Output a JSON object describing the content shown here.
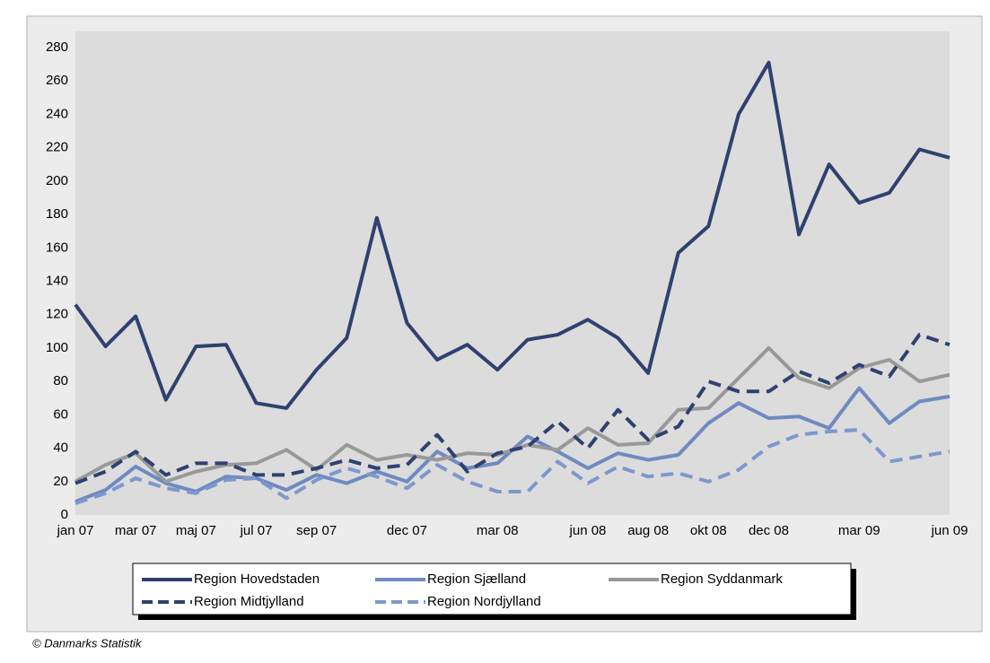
{
  "chart_data": {
    "type": "line",
    "categories": [
      "jan 07",
      null,
      "mar 07",
      null,
      "maj 07",
      null,
      "jul 07",
      null,
      "sep 07",
      null,
      null,
      "dec 07",
      null,
      null,
      "mar 08",
      null,
      null,
      "jun 08",
      null,
      "aug 08",
      null,
      "okt 08",
      null,
      "dec 08",
      null,
      null,
      "mar 09",
      null,
      null,
      "jun 09"
    ],
    "series": [
      {
        "name": "Region Hovedstaden",
        "color": "#2f4170",
        "dashed": false,
        "values": [
          126,
          101,
          119,
          69,
          101,
          102,
          67,
          64,
          87,
          106,
          178,
          115,
          93,
          102,
          87,
          105,
          108,
          117,
          106,
          85,
          157,
          173,
          240,
          271,
          168,
          210,
          187,
          193,
          219,
          214
        ]
      },
      {
        "name": "Region Sjælland",
        "color": "#6f8ac0",
        "dashed": false,
        "values": [
          8,
          15,
          29,
          19,
          14,
          23,
          22,
          15,
          24,
          19,
          26,
          20,
          38,
          28,
          31,
          47,
          38,
          28,
          37,
          33,
          36,
          55,
          67,
          58,
          59,
          52,
          76,
          55,
          68,
          71
        ]
      },
      {
        "name": "Region Syddanmark",
        "color": "#999999",
        "dashed": false,
        "values": [
          20,
          30,
          37,
          20,
          26,
          30,
          31,
          39,
          27,
          42,
          33,
          36,
          33,
          37,
          36,
          42,
          39,
          52,
          42,
          43,
          63,
          64,
          82,
          100,
          82,
          76,
          88,
          93,
          80,
          84
        ]
      },
      {
        "name": "Region Midtjylland",
        "color": "#2f4170",
        "dashed": true,
        "values": [
          19,
          26,
          38,
          24,
          31,
          31,
          24,
          24,
          28,
          33,
          28,
          30,
          48,
          26,
          37,
          41,
          56,
          40,
          63,
          45,
          53,
          80,
          74,
          74,
          86,
          79,
          90,
          83,
          108,
          102
        ]
      },
      {
        "name": "Region Nordjylland",
        "color": "#7d98cc",
        "dashed": true,
        "values": [
          7,
          13,
          22,
          16,
          13,
          21,
          22,
          10,
          21,
          28,
          23,
          16,
          30,
          20,
          14,
          14,
          32,
          19,
          29,
          23,
          25,
          20,
          27,
          41,
          48,
          50,
          51,
          32,
          35,
          38
        ]
      }
    ],
    "ylim": [
      0,
      280
    ],
    "yticks": [
      0,
      20,
      40,
      60,
      80,
      100,
      120,
      140,
      160,
      180,
      200,
      220,
      240,
      260,
      280
    ],
    "grid": false
  },
  "footer": "© Danmarks Statistik"
}
